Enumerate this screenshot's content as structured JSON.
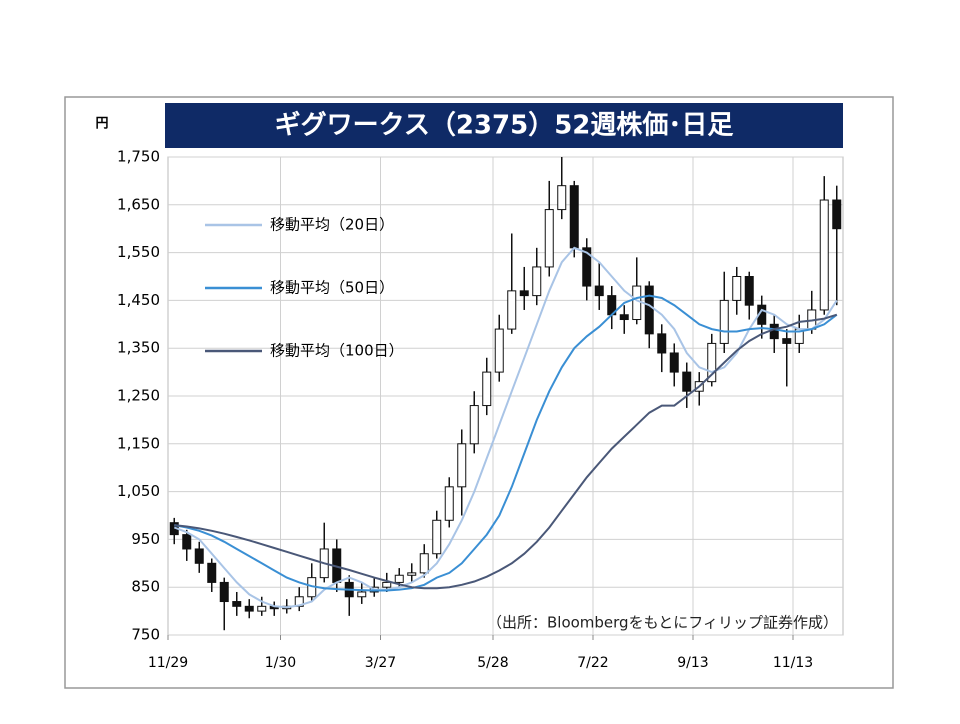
{
  "chart_data": {
    "type": "candlestick",
    "title": "ギグワークス（2375）52週株価･日足",
    "y_unit": "円",
    "source": "（出所：Bloombergをもとにフィリップ証券作成）",
    "categories": [
      "11/29",
      null,
      null,
      null,
      null,
      null,
      null,
      null,
      null,
      "1/30",
      null,
      null,
      null,
      null,
      null,
      null,
      null,
      "3/27",
      null,
      null,
      null,
      null,
      null,
      null,
      null,
      null,
      "5/28",
      null,
      null,
      null,
      null,
      null,
      null,
      null,
      "7/22",
      null,
      null,
      null,
      null,
      null,
      null,
      null,
      "9/13",
      null,
      null,
      null,
      null,
      null,
      null,
      null,
      "11/13",
      null,
      null,
      null
    ],
    "open": [
      985,
      960,
      930,
      900,
      860,
      820,
      810,
      800,
      810,
      805,
      810,
      830,
      870,
      930,
      860,
      830,
      840,
      850,
      860,
      875,
      880,
      920,
      990,
      1060,
      1150,
      1230,
      1300,
      1390,
      1470,
      1460,
      1520,
      1640,
      1690,
      1560,
      1480,
      1460,
      1420,
      1410,
      1480,
      1380,
      1340,
      1300,
      1260,
      1280,
      1360,
      1450,
      1500,
      1440,
      1400,
      1370,
      1360,
      1390,
      1430,
      1660
    ],
    "high": [
      995,
      970,
      945,
      910,
      870,
      840,
      825,
      830,
      820,
      825,
      850,
      900,
      985,
      950,
      875,
      860,
      870,
      880,
      890,
      900,
      940,
      1010,
      1080,
      1180,
      1260,
      1330,
      1420,
      1590,
      1520,
      1560,
      1700,
      1750,
      1700,
      1580,
      1530,
      1480,
      1440,
      1540,
      1490,
      1400,
      1360,
      1320,
      1300,
      1380,
      1510,
      1520,
      1510,
      1460,
      1420,
      1390,
      1420,
      1470,
      1710,
      1690
    ],
    "low": [
      940,
      905,
      880,
      840,
      760,
      790,
      785,
      790,
      790,
      795,
      800,
      820,
      860,
      840,
      790,
      815,
      830,
      840,
      850,
      860,
      870,
      910,
      975,
      1000,
      1130,
      1210,
      1280,
      1380,
      1430,
      1440,
      1500,
      1620,
      1540,
      1450,
      1430,
      1390,
      1380,
      1400,
      1350,
      1300,
      1270,
      1225,
      1230,
      1270,
      1340,
      1420,
      1410,
      1370,
      1340,
      1270,
      1340,
      1380,
      1420,
      1440
    ],
    "close": [
      960,
      930,
      900,
      860,
      820,
      810,
      800,
      810,
      805,
      810,
      830,
      870,
      930,
      860,
      830,
      840,
      850,
      860,
      875,
      880,
      920,
      990,
      1060,
      1150,
      1230,
      1300,
      1390,
      1470,
      1460,
      1520,
      1640,
      1690,
      1560,
      1480,
      1460,
      1420,
      1410,
      1480,
      1380,
      1340,
      1300,
      1260,
      1280,
      1360,
      1450,
      1500,
      1440,
      1400,
      1370,
      1360,
      1390,
      1430,
      1660,
      1600
    ],
    "candle_color": "#111111",
    "series": [
      {
        "name": "移動平均（20日）",
        "color": "#a9c4e6",
        "values": [
          975,
          965,
          950,
          920,
          890,
          860,
          835,
          820,
          810,
          808,
          812,
          820,
          845,
          860,
          870,
          860,
          845,
          845,
          850,
          860,
          875,
          900,
          940,
          990,
          1050,
          1120,
          1190,
          1260,
          1330,
          1400,
          1470,
          1530,
          1560,
          1550,
          1530,
          1500,
          1470,
          1450,
          1440,
          1420,
          1390,
          1340,
          1310,
          1300,
          1310,
          1340,
          1390,
          1430,
          1420,
          1400,
          1390,
          1390,
          1410,
          1450
        ]
      },
      {
        "name": "移動平均（50日）",
        "color": "#3a8fd4",
        "values": [
          980,
          975,
          968,
          958,
          945,
          930,
          915,
          900,
          885,
          870,
          860,
          852,
          848,
          846,
          845,
          844,
          843,
          843,
          845,
          848,
          855,
          870,
          880,
          900,
          930,
          960,
          1000,
          1060,
          1130,
          1200,
          1260,
          1310,
          1350,
          1375,
          1395,
          1420,
          1445,
          1455,
          1460,
          1455,
          1440,
          1420,
          1400,
          1390,
          1385,
          1385,
          1390,
          1392,
          1390,
          1385,
          1385,
          1390,
          1400,
          1420
        ]
      },
      {
        "name": "移動平均（100日）",
        "color": "#4a5878",
        "values": [
          980,
          977,
          973,
          968,
          962,
          955,
          948,
          940,
          932,
          924,
          916,
          908,
          900,
          893,
          886,
          878,
          870,
          863,
          856,
          850,
          848,
          848,
          850,
          855,
          862,
          872,
          885,
          900,
          920,
          945,
          975,
          1010,
          1045,
          1080,
          1110,
          1140,
          1165,
          1190,
          1215,
          1230,
          1230,
          1250,
          1270,
          1295,
          1320,
          1345,
          1365,
          1380,
          1390,
          1395,
          1405,
          1408,
          1412,
          1420
        ]
      }
    ],
    "ylim": [
      750,
      1750
    ],
    "yticks": [
      750,
      850,
      950,
      {
        "value": 1050,
        "label": "1,050"
      },
      {
        "value": 1150,
        "label": "1,150"
      },
      {
        "value": 1250,
        "label": "1,250"
      },
      {
        "value": 1350,
        "label": "1,350"
      },
      {
        "value": 1450,
        "label": "1,450"
      },
      {
        "value": 1550,
        "label": "1,550"
      },
      {
        "value": 1650,
        "label": "1,650"
      },
      {
        "value": 1750,
        "label": "1,750"
      }
    ],
    "grid": true
  }
}
